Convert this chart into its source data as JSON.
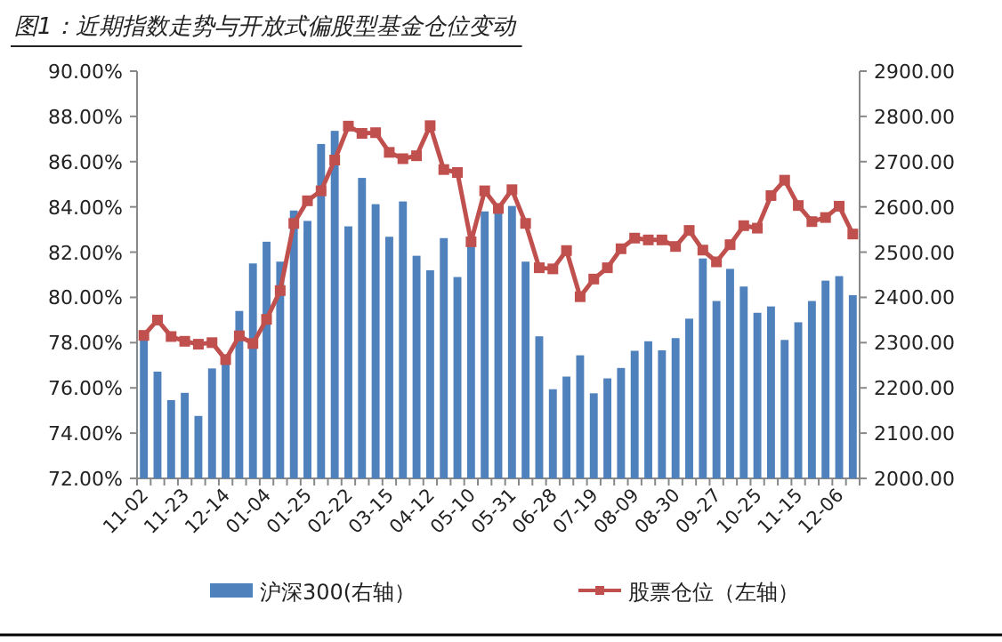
{
  "chart_data": {
    "type": "bar",
    "title": "图1：近期指数走势与开放式偏股型基金仓位变动",
    "categories": [
      "11-02",
      null,
      null,
      "11-23",
      null,
      null,
      "12-14",
      null,
      null,
      "01-04",
      null,
      null,
      "01-25",
      null,
      null,
      "02-22",
      null,
      null,
      "03-15",
      null,
      null,
      "04-12",
      null,
      null,
      "05-10",
      null,
      null,
      "05-31",
      null,
      null,
      "06-28",
      null,
      null,
      "07-19",
      null,
      null,
      "08-09",
      null,
      null,
      "08-30",
      null,
      null,
      "09-27",
      null,
      null,
      "10-25",
      null,
      null,
      "11-15",
      null,
      null,
      "12-06",
      null
    ],
    "series": [
      {
        "name": "沪深300(右轴）",
        "axis": "y2",
        "color": "#4f81bd",
        "values": [
          2308,
          2236,
          2173,
          2189,
          2138,
          2243,
          2260,
          2370,
          2475,
          2523,
          2479,
          2592,
          2569,
          2739,
          2768,
          2557,
          2664,
          2606,
          2534,
          2612,
          2492,
          2460,
          2531,
          2445,
          2520,
          2590,
          2594,
          2602,
          2479,
          2314,
          2197,
          2225,
          2272,
          2188,
          2221,
          2244,
          2282,
          2303,
          2283,
          2310,
          2353,
          2486,
          2392,
          2463,
          2424,
          2366,
          2380,
          2306,
          2345,
          2392,
          2437,
          2447,
          2405
        ]
      },
      {
        "name": "股票仓位（左轴）",
        "type": "line",
        "axis": "y",
        "marker": "square",
        "color": "#c0504d",
        "values": [
          78.32,
          79.0,
          78.27,
          78.06,
          77.93,
          78.0,
          77.25,
          78.3,
          77.96,
          79.03,
          80.3,
          83.27,
          84.27,
          84.71,
          86.07,
          87.57,
          87.25,
          87.28,
          86.41,
          86.13,
          86.26,
          87.59,
          85.65,
          85.52,
          82.46,
          84.71,
          83.93,
          84.76,
          83.27,
          81.31,
          81.26,
          82.07,
          80.03,
          80.81,
          81.31,
          82.15,
          82.62,
          82.54,
          82.54,
          82.25,
          82.96,
          82.09,
          81.57,
          82.33,
          83.17,
          83.06,
          84.5,
          85.18,
          84.06,
          83.35,
          83.53,
          84.03,
          82.8
        ]
      }
    ],
    "ylim": [
      72,
      90
    ],
    "yticks": [
      {
        "value": 72,
        "label": "72.00%"
      },
      {
        "value": 74,
        "label": "74.00%"
      },
      {
        "value": 76,
        "label": "76.00%"
      },
      {
        "value": 78,
        "label": "78.00%"
      },
      {
        "value": 80,
        "label": "80.00%"
      },
      {
        "value": 82,
        "label": "82.00%"
      },
      {
        "value": 84,
        "label": "84.00%"
      },
      {
        "value": 86,
        "label": "86.00%"
      },
      {
        "value": 88,
        "label": "88.00%"
      },
      {
        "value": 90,
        "label": "90.00%"
      }
    ],
    "y2lim": [
      2000,
      2900
    ],
    "y2ticks": [
      {
        "value": 2000,
        "label": "2000.00"
      },
      {
        "value": 2100,
        "label": "2100.00"
      },
      {
        "value": 2200,
        "label": "2200.00"
      },
      {
        "value": 2300,
        "label": "2300.00"
      },
      {
        "value": 2400,
        "label": "2400.00"
      },
      {
        "value": 2500,
        "label": "2500.00"
      },
      {
        "value": 2600,
        "label": "2600.00"
      },
      {
        "value": 2700,
        "label": "2700.00"
      },
      {
        "value": 2800,
        "label": "2800.00"
      },
      {
        "value": 2900,
        "label": "2900.00"
      }
    ],
    "legend": "bottom"
  }
}
